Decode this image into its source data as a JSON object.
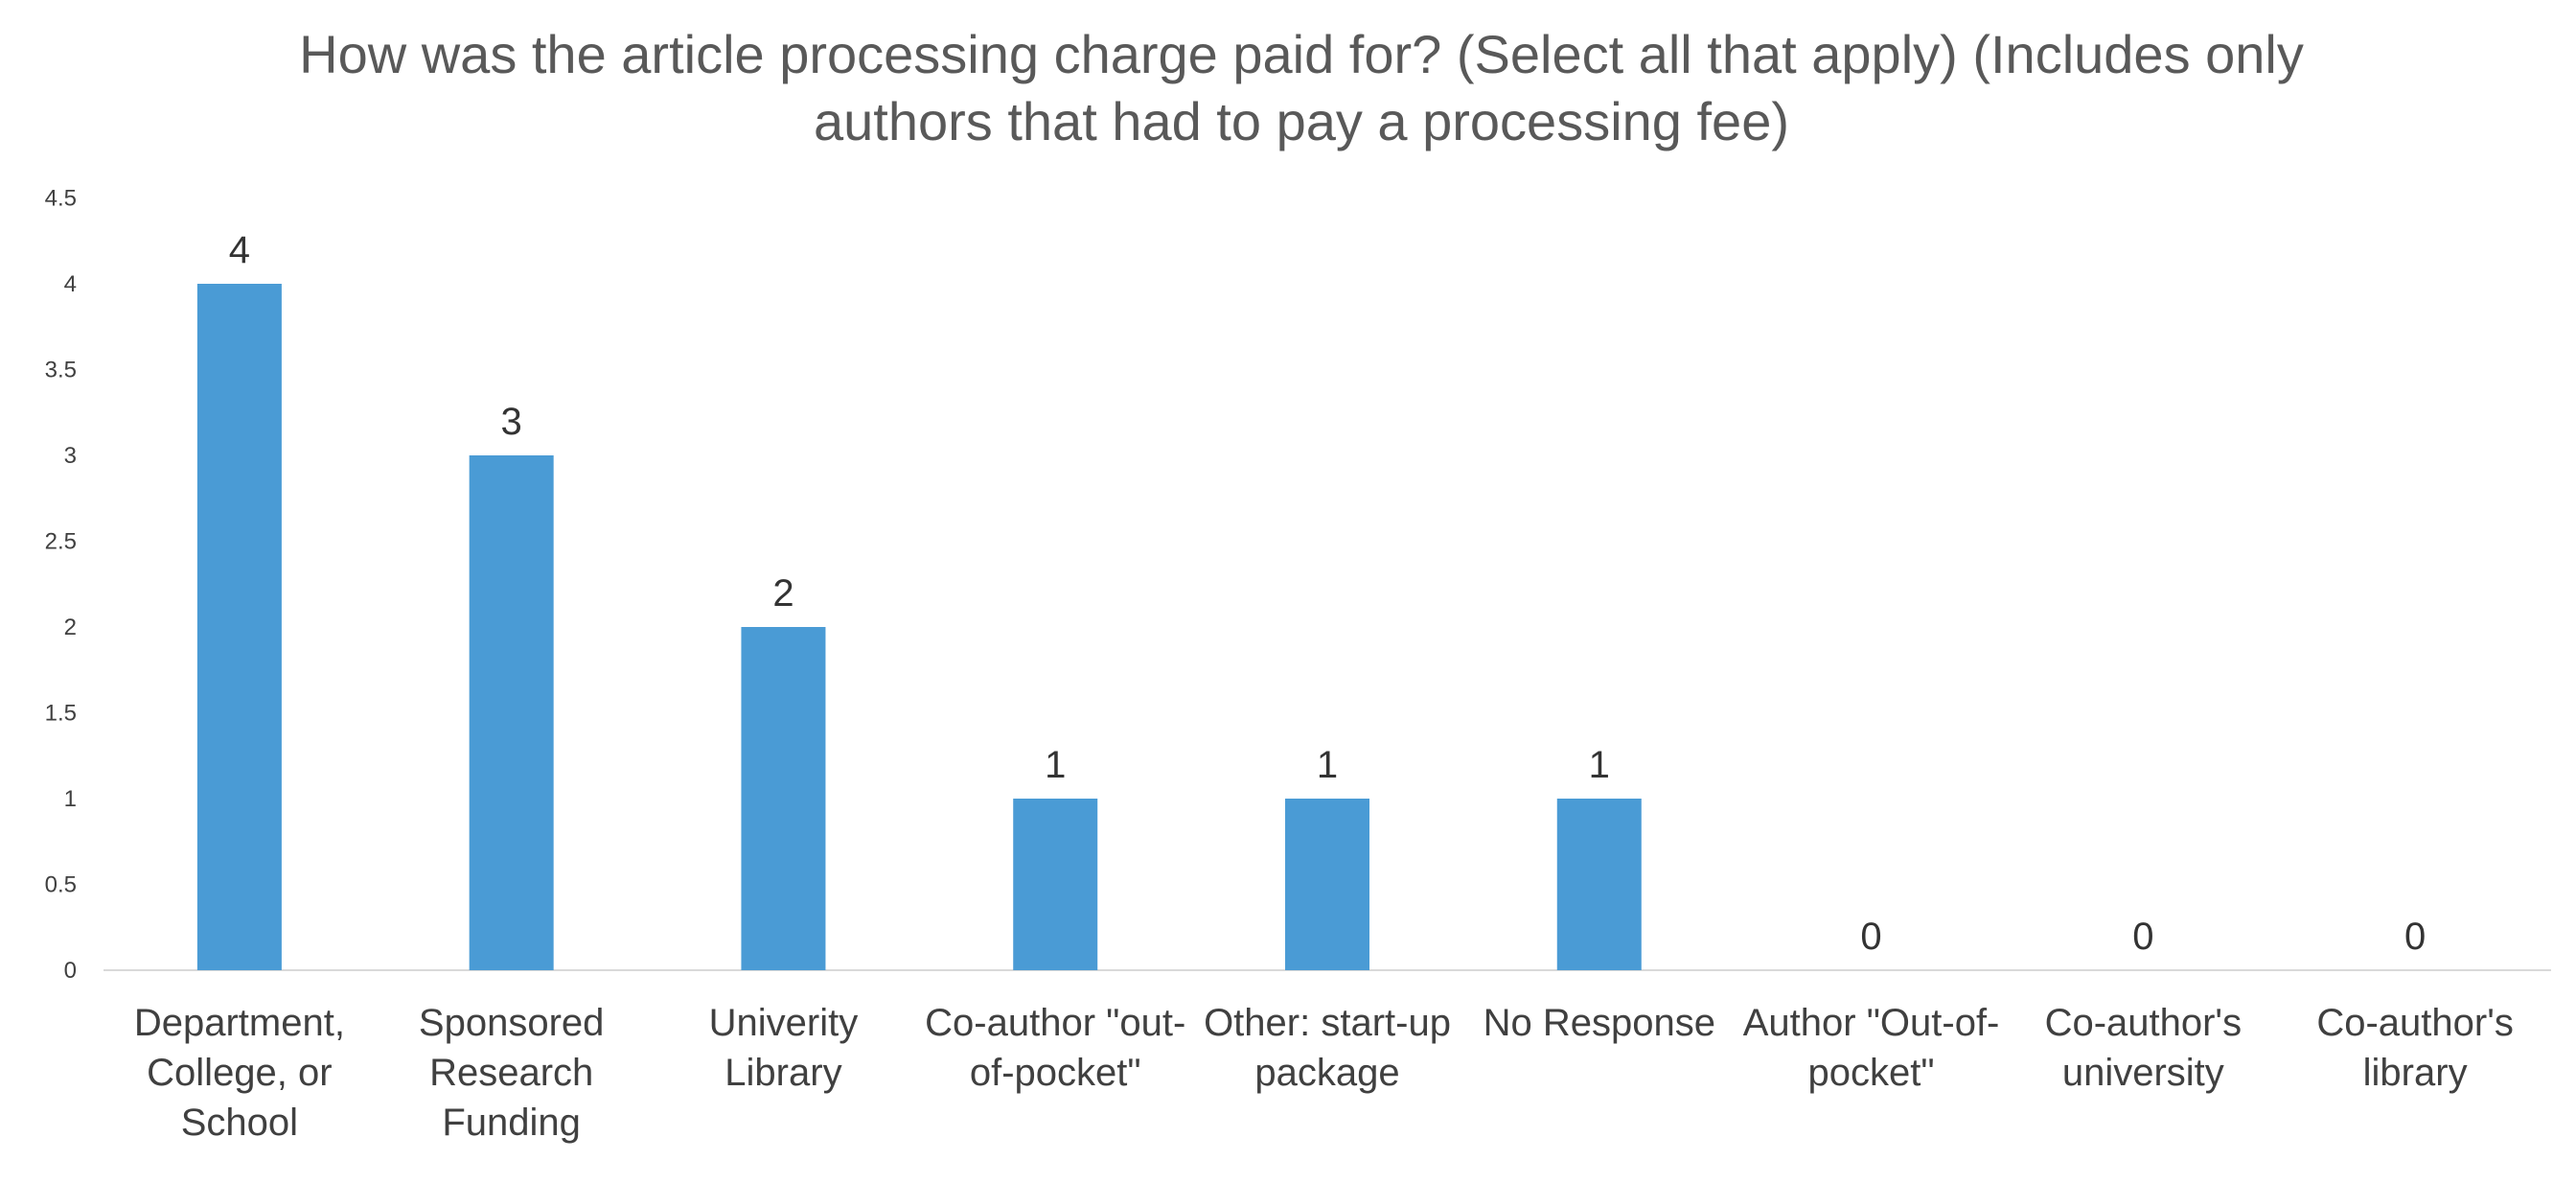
{
  "chart_data": {
    "type": "bar",
    "title_lines": [
      "How was the article processing charge paid for? (Select all that apply) (Includes only",
      "authors that had to pay a processing fee)"
    ],
    "categories": [
      [
        "Department,",
        "College, or",
        "School"
      ],
      [
        "Sponsored",
        "Research",
        "Funding"
      ],
      [
        "Univerity",
        "Library"
      ],
      [
        "Co-author \"out-",
        "of-pocket\""
      ],
      [
        "Other: start-up",
        "package"
      ],
      [
        "No Response"
      ],
      [
        "Author \"Out-of-",
        "pocket\""
      ],
      [
        "Co-author's",
        "university"
      ],
      [
        "Co-author's",
        "library"
      ]
    ],
    "values": [
      4,
      3,
      2,
      1,
      1,
      1,
      0,
      0,
      0
    ],
    "data_labels": [
      "4",
      "3",
      "2",
      "1",
      "1",
      "1",
      "0",
      "0",
      "0"
    ],
    "yticks": [
      "0",
      "0.5",
      "1",
      "1.5",
      "2",
      "2.5",
      "3",
      "3.5",
      "4",
      "4.5"
    ],
    "ylim": [
      0,
      4.5
    ],
    "bar_color": "#4a9bd5",
    "grid": false,
    "legend": "none"
  }
}
